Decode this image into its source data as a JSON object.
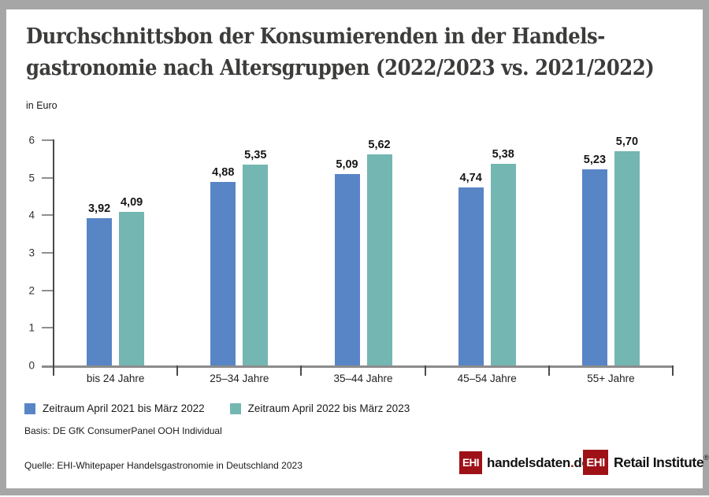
{
  "brand": {
    "ehi_red": "#9e1117",
    "bar_blue": "#5885c6",
    "bar_teal": "#74b6b2",
    "frame_gray": "#a6a6a6"
  },
  "title": {
    "line1": "Durchschnittsbon der Konsumierenden in der Handels-",
    "line2": "gastronomie nach Altersgruppen (2022/2023 vs. 2021/2022)"
  },
  "unit_label": "in Euro",
  "chart_data": {
    "type": "bar",
    "title": "Durchschnittsbon der Konsumierenden in der Handelsgastronomie nach Altersgruppen (2022/2023 vs. 2021/2022)",
    "xlabel": "",
    "ylabel": "in Euro",
    "ylim": [
      0,
      6
    ],
    "yticks": [
      0,
      1,
      2,
      3,
      4,
      5,
      6
    ],
    "grid": false,
    "legend_position": "bottom",
    "categories": [
      "bis 24 Jahre",
      "25–34 Jahre",
      "35–44 Jahre",
      "45–54 Jahre",
      "55+ Jahre"
    ],
    "series": [
      {
        "name": "Zeitraum April 2021 bis März 2022",
        "color": "#5885c6",
        "values": [
          3.92,
          4.88,
          5.09,
          4.74,
          5.23
        ],
        "labels": [
          "3,92",
          "4,88",
          "5,09",
          "4,74",
          "5,23"
        ]
      },
      {
        "name": "Zeitraum April 2022 bis März 2023",
        "color": "#74b6b2",
        "values": [
          4.09,
          5.35,
          5.62,
          5.38,
          5.7
        ],
        "labels": [
          "4,09",
          "5,35",
          "5,62",
          "5,38",
          "5,70"
        ]
      }
    ]
  },
  "basis": "Basis: DE GfK ConsumerPanel OOH Individual",
  "source": "Quelle: EHI-Whitepaper Handelsgastronomie in Deutschland 2023",
  "logos": {
    "handelsdaten": {
      "ehi": "EHI",
      "name": "handelsdaten",
      "dot": ".",
      "tld": "de"
    },
    "retail": {
      "ehi": "EHI",
      "name": "Retail Institute",
      "registered": "®"
    }
  }
}
